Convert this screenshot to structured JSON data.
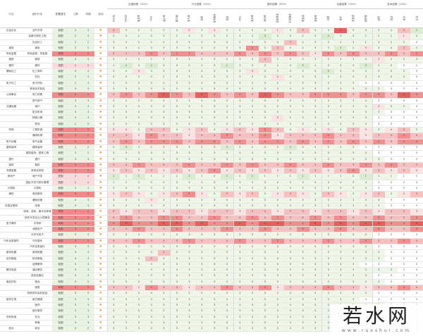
{
  "header": {
    "industry": "行业",
    "sub_industry": "细分行业",
    "rating": "配置建议",
    "col_prev": "上期",
    "col_curr": "本期",
    "col_change": "变动",
    "groups": [
      {
        "label": "估值因素（20%）",
        "cols": [
          "PE分位",
          "PB分位",
          "股息率",
          "PEG",
          "溢价率"
        ]
      },
      {
        "label": "行业因素（20%）",
        "cols": [
          "集中度",
          "景气度",
          "政策",
          "竞争格局",
          "壁垒"
        ]
      },
      {
        "label": "盈利因素（30%）",
        "cols": [
          "ROE",
          "毛利率",
          "净利率",
          "营收增速",
          "利润增速",
          "现金流",
          "周转率"
        ]
      },
      {
        "label": "估值因素（20%）",
        "cols": [
          "动量",
          "换手",
          "资金流",
          "拥挤度"
        ]
      },
      {
        "label": "技术因素（10%）",
        "cols": [
          "趋势",
          "波动",
          "成交",
          "北向"
        ]
      }
    ]
  },
  "palette": {
    "r1": "#fbe3e3",
    "r2": "#f6c0c0",
    "r3": "#ef8f8f",
    "r4": "#e4605f",
    "g1": "#eef6e8",
    "g2": "#dcecd0",
    "g3": "#c7e0b6",
    "tag_red": "#ef8a8a",
    "tag_pink": "#fadada",
    "tag_green": "#e9f3e1"
  },
  "rows": [
    {
      "ind": "石油石化",
      "sub": "油气开采",
      "tag": "标配",
      "tc": "tag_green",
      "a": "3",
      "b": "3",
      "c": "r2g1g1ggg r1g1r1ggg gr1g1r2ggr4 g1ggg r2g2gg",
      "v": "3 3 2 2 3 3 2 3 3 3 2 3 3 1 3 3 3 3 2 3 3 3 4 3 2"
    },
    {
      "ind": "",
      "sub": "油服与炼化工程",
      "tag": "标配",
      "tc": "tag_green",
      "a": "2",
      "b": "3",
      "c": "g1ggg1g gg1ggg g1g1g2gggg1 g2gg1g g1g1r1g",
      "v": "3 3 2 3 3 2 3 3 3 2 3 3 3 3 3 2 3 3 3 3 2 2 1 1 3"
    },
    {
      "ind": "",
      "sub": "石油化工",
      "tag": "标配",
      "tc": "tag_green",
      "a": "2",
      "b": "2",
      "c": "ggg1gg g1gg1gg g1g1ggr2gg g1gg1 g1gg1g",
      "v": "3 3 3 2 2 3 3 3 3 3 2 3 3 4 3 2 3 3 2 3 1 3 2 3 3"
    },
    {
      "ind": "煤炭",
      "sub": "煤炭",
      "tag": "标配",
      "tc": "tag_green",
      "a": "2",
      "b": "2",
      "c": "g1gggg g1ggg1g gr3gr2gg1g g1g2gr1 ggr2g1",
      "v": "3 3 2 3 3 3 3 3 2 3 3 4 3 4 3 2 3 3 3 2 3 3 4 3 2"
    },
    {
      "ind": "有色金属",
      "sub": "有色金属、贵金属",
      "tag": "标配",
      "tc": "tag_red",
      "a": "4",
      "b": "4",
      "c": "r2r2r2r3r2 r3r3r2r2r2 r3r2r3r2r3r2r1 r3r2r3r2 r2r3r2r3",
      "v": "3 3 3 4 3 3 3 4 3 3 4 3 4 3 4 3 3 4 3 4 3 3 4 3 4"
    },
    {
      "ind": "钢铁",
      "sub": "钢铁",
      "tag": "标配",
      "tc": "tag_green",
      "a": "3",
      "b": "3",
      "c": "gg1g1gg gg1ggg g1gr2gg1gg g1gggr1 gg1gg",
      "v": "3 3 3 2 3 3 3 3 3 3 3 3 4 3 3 3 3 3 3 3 4 3 3 3 3"
    },
    {
      "ind": "建材",
      "sub": "建材",
      "tag": "低配",
      "tc": "tag_pink",
      "a": "2",
      "b": "2",
      "c": "g1g2gg2g g1gg1g g2g1gg1gg g2g1gg1 g1g2gg",
      "v": "1 2 3 2 3 3 2 1 3 1 3 3 3 2 3 3 1 3 3 3 3 2 3 3 2"
    },
    {
      "ind": "基础化工",
      "sub": "化工原料",
      "tag": "标配",
      "tc": "tag_green",
      "a": "3",
      "b": "3",
      "c": "ggr1gg gg1ggg gr1gg1gg1 gg2gg ggg1g",
      "v": "3 3 3 3 3 3 3 3 3 3 3 3 3 3 3 3 3 3 3 3 3 3 3 3 3"
    },
    {
      "ind": "",
      "sub": "农化",
      "tag": "标配",
      "tc": "tag_green",
      "a": "3",
      "b": "3",
      "c": "g1gggg1 gg1gg1g gg1gr1gg g1gg1g ggg1g",
      "v": "3 3 3 3 2 3 3 3 3 3 3 3 3 4 3 3 3 3 3 3 3 3 3 3 3"
    },
    {
      "ind": "电子化工",
      "sub": "电子材料",
      "tag": "标配",
      "tc": "tag_green",
      "a": "2",
      "b": "3",
      "c": "g1g1gg gg1gg g1g1g1gg g1g1g1g g1gg1",
      "v": "3 3 3 3 3 3 3 3 3 3 3 3 3 3 3 3 3 3 3 3 3 3 3 3 3"
    },
    {
      "ind": "",
      "sub": "其他化学制品",
      "tag": "标配",
      "tc": "tag_green",
      "a": "3",
      "b": "3",
      "c": "gg1g1gg g1ggg1 gg1g1gg g1gg1g g1gg1g",
      "v": "3 3 3 3 3 3 3 3 3 3 3 3 3 3 3 3 3 3 3 3 3 3 3 3 3"
    },
    {
      "ind": "公用事业",
      "sub": "电力设备",
      "tag": "标配",
      "tc": "tag_red",
      "a": "4",
      "b": "4",
      "c": "r2r3r2r3r4 r3r2r4r3r2 r3r2r4r3r2r2r3 r3r3r2r3 r3r2r4r3",
      "v": "4 4 3 4 4 4 3 4 4 3 4 3 4 4 3 3 4 4 4 3 4 4 3 4 4"
    },
    {
      "ind": "",
      "sub": "燃气燃气",
      "tag": "标配",
      "tc": "tag_green",
      "a": "3",
      "b": "3",
      "c": "gg1gg1 g1gg1g gg1gg1g g1gg1g ggg1g",
      "v": "3 3 3 3 3 3 3 3 3 3 3 3 3 3 3 3 3 3 3 3 3 3 3 3 3"
    },
    {
      "ind": "交通运输",
      "sub": "港口",
      "tag": "标配",
      "tc": "tag_green",
      "a": "3",
      "b": "3",
      "c": "g1gggg1 gg1ggg g1g1gg1g gg1gg ggr1gg",
      "v": "3 3 3 3 3 3 3 3 3 3 3 3 3 3 3 3 3 3 3 3 3 3 3 3 3"
    },
    {
      "ind": "",
      "sub": "航空机场",
      "tag": "标配",
      "tc": "tag_green",
      "a": "3",
      "b": "3",
      "c": "gg1g1gg g1gg1g gg1g1gg1 g1g1gg g1ggg1",
      "v": "3 3 3 3 3 3 3 3 3 3 3 3 3 3 3 3 3 3 3 3 3 3 3 3 3"
    },
    {
      "ind": "",
      "sub": "铁路公路",
      "tag": "标配",
      "tc": "tag_green",
      "a": "3",
      "b": "3",
      "c": "g1ggg1g gg1gg1 g1gg1gr1g gg1g1 g1gg1",
      "v": "3 3 3 3 3 3 3 3 3 3 3 3 3 3 4 3 3 3 3 3 3 3 3 3 3"
    },
    {
      "ind": "",
      "sub": "物流",
      "tag": "标配",
      "tc": "tag_green",
      "a": "2",
      "b": "3",
      "c": "gg1gg1g g1gg1g gg1gg1g g1gg1 gg1gg",
      "v": "3 3 3 3 3 3 3 3 3 3 3 3 3 3 3 3 3 3 3 3 3 3 3 3 3"
    },
    {
      "ind": "机械",
      "sub": "工程机械",
      "tag": "标配",
      "tc": "tag_red",
      "a": "3",
      "b": "4",
      "c": "r1r1gr2r2 gr1r2gr1 r2r1r3r2gr1g r1gr2r1 gr1r2g",
      "v": "3 3 3 4 3 3 3 4 3 3 4 3 4 4 3 3 3 3 4 3 3 3 4 3 3"
    },
    {
      "ind": "",
      "sub": "通用机械",
      "tag": "标配",
      "tc": "tag_red",
      "a": "3",
      "b": "3",
      "c": "r2r2r1r3r2 r2r1r2r2r3 r2r2r3r1r2r2r2 r3r2r2r1 r2r2r3r2",
      "v": "3 3 3 4 3 3 3 4 3 3 4 3 4 3 3 3 3 4 3 3 3 3 4 3 4"
    },
    {
      "ind": "电气设备",
      "sub": "电气设备",
      "tag": "标配",
      "tc": "tag_red",
      "a": "4",
      "b": "4",
      "c": "r2r3r2r3r3 r3r2r3r3r2 r3r2r3r3r2r3r2 r3r2r3r2 r3r2r3r3",
      "v": "4 4 3 4 4 4 3 4 4 3 4 3 4 4 3 4 3 4 3 4 3 4 3 4 4"
    },
    {
      "ind": "建筑装饰",
      "sub": "建筑装饰",
      "tag": "标配",
      "tc": "tag_green",
      "a": "2",
      "b": "2",
      "c": "g1g2gg1 gg1gg1 g1g2gg1g g1g2g1 g1gg1g",
      "v": "2 3 3 2 3 3 3 2 3 3 3 2 3 3 3 3 3 3 2 3 3 3 2 3 3"
    },
    {
      "ind": "",
      "sub": "建筑装饰、园林工程",
      "tag": "标配",
      "tc": "tag_green",
      "a": "2",
      "b": "2",
      "c": "gg1gg1g g1gg1g gg1g1gg g1gg1 gg1gg",
      "v": "3 3 3 3 3 3 3 3 3 3 3 3 3 3 3 3 3 3 3 3 3 3 3 3 3"
    },
    {
      "ind": "银行",
      "sub": "银行",
      "tag": "标配",
      "tc": "tag_green",
      "a": "3",
      "b": "3",
      "c": "g1gggg1 g1g1gg gg1gg1g g1g1gg gg1gg",
      "v": "3 3 3 3 3 3 3 3 3 3 3 3 3 3 3 3 3 3 3 3 3 3 3 3 3"
    },
    {
      "ind": "保险",
      "sub": "保险",
      "tag": "标配",
      "tc": "tag_red",
      "a": "4",
      "b": "3",
      "c": "r2r2r3r2r2 r2r3r2r2r3 r2r3r2r2r3r2r2 r3r2r2r3 r2r3r2r2",
      "v": "3 4 3 3 4 3 4 3 3 4 3 4 3 3 4 3 3 4 3 3 4 3 4 3 3"
    },
    {
      "ind": "非银金融",
      "sub": "券商及其他",
      "tag": "标配",
      "tc": "tag_red",
      "a": "3",
      "b": "3",
      "c": "r1r2r1r2r1 r2r1r2r3r1 r2r1r2r1r2r1r2 r1r2r3r1 r2r1r2r1",
      "v": "3 3 3 3 3 3 3 3 4 3 3 3 3 3 3 3 3 3 3 4 3 3 3 3 3"
    },
    {
      "ind": "房地产",
      "sub": "地产开发",
      "tag": "低配",
      "tc": "tag_pink",
      "a": "2",
      "b": "2",
      "c": "g2g1g2gg1 g1g2gg1 g2g1g2g1gg g2g1gg g1g2gg1",
      "v": "1 1 2 1 1 2 1 1 2 1 2 1 1 1 2 1 1 1 1 2 1 2 1 1 2"
    },
    {
      "ind": "",
      "sub": "园区开发与物业管理",
      "tag": "低配",
      "tc": "tag_pink",
      "a": "2",
      "b": "2",
      "c": "g1gg1gg g1g1gg g1gg1gg g1gg1 gg1gg",
      "v": "2 2 3 3 3 3 3 3 3 3 3 3 3 3 3 3 3 3 3 3 3 3 3 3 3"
    },
    {
      "ind": "计算机",
      "sub": "计算机",
      "tag": "标配",
      "tc": "tag_green",
      "a": "3",
      "b": "3",
      "c": "gg1g1gg g1gg1g gg1gg1g g1g1gg g1gg1",
      "v": "3 3 3 3 3 3 3 3 3 3 3 3 3 3 3 3 3 3 3 3 3 3 3 3 3"
    },
    {
      "ind": "通信",
      "sub": "电信服务",
      "tag": "标配",
      "tc": "tag_red",
      "a": "3",
      "b": "4",
      "c": "r1r2r1gr1 r2r3r1gr2 r1r2gr1r2r1g r2r1gr1 r2gr1r2",
      "v": "3 3 3 3 3 3 4 3 3 3 3 3 3 3 3 3 3 3 3 3 3 3 3 3 3"
    },
    {
      "ind": "",
      "sub": "通信设备",
      "tag": "标配",
      "tc": "tag_green",
      "a": "3",
      "b": "3",
      "c": "g1ggr1gg g1gg1g gg1gg1g g1gg1 gg1gg",
      "v": "3 3 3 3 3 3 3 3 3 3 3 3 3 3 3 3 3 3 3 3 3 3 3 3 3"
    },
    {
      "ind": "传媒互联网",
      "sub": "传媒",
      "tag": "标配",
      "tc": "tag_green",
      "a": "3",
      "b": "3",
      "c": "gg1gg1g g1g1gg g1gg1gg1 g1g1gg gg1gg",
      "v": "3 3 3 3 3 3 3 3 3 3 3 3 3 3 3 3 3 3 3 3 3 3 3 3 3"
    },
    {
      "ind": "",
      "sub": "电商、游戏、娱乐及体育",
      "tag": "标配",
      "tc": "tag_red",
      "a": "3",
      "b": "4",
      "c": "r2r1r2r2r1 r2r2r1r2r2 r1r2r2r1r2r2r1 r2r2r1r2 r1r2r2r1",
      "v": "3 3 3 3 3 3 3 3 3 3 3 3 3 3 3 3 3 3 3 3 3 3 3 3 3"
    },
    {
      "ind": "",
      "sub": "软件开发及云计算服务",
      "tag": "标配",
      "tc": "tag_red",
      "a": "4",
      "b": "4",
      "c": "r2r3r2r2r3 r3r2r2r3r2 r2r3r2r3r2r2r3 r2r3r2r2 r3r2r2r3",
      "v": "4 3 4 3 3 4 3 4 3 3 4 3 4 3 3 4 3 4 3 4 3 3 4 3 4"
    },
    {
      "ind": "电子硬件",
      "sub": "半导体",
      "tag": "标配",
      "tc": "tag_red",
      "a": "4",
      "b": "4",
      "c": "r3r4r3r3r4 r4r3r4r3r3 r4r3r4r4r3r3r4 r3r4r3r4 r4r3r3r4",
      "v": "4 4 4 4 4 4 4 4 4 4 4 4 4 4 4 4 4 4 4 4 4 4 4 4 4"
    },
    {
      "ind": "",
      "sub": "消费电子",
      "tag": "标配",
      "tc": "tag_red",
      "a": "3",
      "b": "4",
      "c": "r2r2r3r2r2 r3r2r2r2r3 r2r2r3r2r2r3r2 r2r3r2r2 r3r2r2r3",
      "v": "3 3 4 3 3 4 3 3 3 4 3 3 4 3 3 4 3 3 4 3 3 4 3 3 4"
    },
    {
      "ind": "",
      "sub": "光学光电子",
      "tag": "标配",
      "tc": "tag_green",
      "a": "3",
      "b": "3",
      "c": "gg1gg1g g1gg1g gg1g1gg1 g1gg1 gg1gg",
      "v": "3 3 3 3 3 3 3 3 3 3 3 3 3 3 3 3 3 3 3 3 3 3 3 3 3"
    },
    {
      "ind": "汽车及零部件",
      "sub": "汽车整车",
      "tag": "标配",
      "tc": "tag_red",
      "a": "3",
      "b": "3",
      "c": "r2r2r3r2r2 r2r3r2r2r2 r3r2r2r3r2r2r2 r3r2r2r3 r2r2r3r2",
      "v": "3 3 3 3 3 3 3 3 3 3 3 3 3 3 3 3 3 3 3 3 3 3 3 3 3"
    },
    {
      "ind": "",
      "sub": "汽车及零部件",
      "tag": "标配",
      "tc": "tag_green",
      "a": "3",
      "b": "3",
      "c": "g1gg1gg g1gg1g gg1gg1g g1g1gg g1gg1",
      "v": "3 3 3 3 3 3 3 3 3 3 3 3 3 3 3 3 3 3 3 3 3 3 3 3 3"
    },
    {
      "ind": "家用电器",
      "sub": "家用电器",
      "tag": "标配",
      "tc": "tag_green",
      "a": "3",
      "b": "3",
      "c": "gg1g1gr2g g1gg1g gg1g1gg g1gg1 gg1gg",
      "v": "3 3 3 3 4 3 3 3 3 3 3 3 3 3 3 3 3 3 3 3 3 3 3 3 3"
    },
    {
      "ind": "纺织服装",
      "sub": "纺织服装",
      "tag": "标配",
      "tc": "tag_green",
      "a": "3",
      "b": "3",
      "c": "g1ggr2gg1 g1gg1g gg1gg1g g1gg1 gg1gg",
      "v": "3 3 3 4 3 3 3 3 3 3 3 3 3 3 3 3 3 3 3 3 3 3 3 3 3"
    },
    {
      "ind": "",
      "sub": "品牌服饰",
      "tag": "标配",
      "tc": "tag_green",
      "a": "3",
      "b": "3",
      "c": "gg1gg1g g1g1gg g1gg1gg g1gg1 g1gg1",
      "v": "3 3 3 3 3 3 3 3 3 3 3 3 3 3 3 3 3 3 3 3 3 3 3 3 3"
    },
    {
      "ind": "餐饮旅游",
      "sub": "酒店餐饮",
      "tag": "标配",
      "tc": "tag_green",
      "a": "3",
      "b": "3",
      "c": "g1gg1gg gg1gg1 g1gg1ggg g1g1gg ggg1g",
      "v": "3 3 3 3 3 3 3 3 3 3 3 3 3 3 3 3 3 3 3 3 3 3 3 3 3"
    },
    {
      "ind": "",
      "sub": "旅游及景区",
      "tag": "标配",
      "tc": "tag_green",
      "a": "3",
      "b": "3",
      "c": "gg1gg1g g1gg1g gg1g1gg g1gg1 gg1gg",
      "v": "3 3 3 3 3 3 3 3 3 3 3 3 3 3 3 3 3 3 3 3 3 3 3 3 3"
    },
    {
      "ind": "食品饮料",
      "sub": "食品",
      "tag": "标配",
      "tc": "tag_green",
      "a": "3",
      "b": "3",
      "c": "g1gggg1 gg1gg1 g1gg1gg1g g1gg1 ggg1g",
      "v": "3 3 3 3 3 3 3 3 3 3 3 3 3 3 3 3 3 3 3 3 3 3 3 3 3"
    },
    {
      "ind": "",
      "sub": "酒类",
      "tag": "标配",
      "tc": "tag_red",
      "a": "4",
      "b": "3",
      "c": "r2r2r1r3r2 r2r1r2r2r3 r2r2r3r1r2r2r2 r3r2r2r1 r2r2r3r2",
      "v": "3 3 3 4 3 3 3 4 3 3 4 3 4 3 3 3 3 4 3 3 3 3 4 3 4"
    },
    {
      "ind": "",
      "sub": "其他饮料及乳制品",
      "tag": "标配",
      "tc": "tag_green",
      "a": "3",
      "b": "3",
      "c": "gg1gg1g g1gg1g gg1gg1g g1gg1 gg1gg",
      "v": "3 3 3 3 3 3 3 3 3 3 3 3 3 3 3 3 3 3 3 3 3 3 3 3 3"
    },
    {
      "ind": "医药生物",
      "sub": "医疗器械",
      "tag": "标配",
      "tc": "tag_green",
      "a": "3",
      "b": "3",
      "c": "g1gg1gg g1g1gg gg1gg1g g1gg1 g1gg1",
      "v": "3 3 3 3 3 3 3 3 3 3 3 3 3 3 3 3 3 3 3 3 3 3 3 3 3"
    },
    {
      "ind": "",
      "sub": "医药",
      "tag": "标配",
      "tc": "tag_green",
      "a": "3",
      "b": "3",
      "c": "gg1g1gg g1gg1g g1gg1gg g1g1gg gg1gg",
      "v": "3 3 3 3 3 3 3 3 3 3 3 3 3 3 3 3 3 3 3 3 3 3 3 3 3"
    },
    {
      "ind": "",
      "sub": "医疗服务",
      "tag": "标配",
      "tc": "tag_green",
      "a": "3",
      "b": "3",
      "c": "g1ggg1g gg1gg1 g1gg1g1g g1gg1 ggg1g",
      "v": "3 3 3 3 3 3 3 3 3 3 3 3 3 3 3 3 3 3 3 3 3 3 3 3 3"
    },
    {
      "ind": "农林牧渔",
      "sub": "农业",
      "tag": "标配",
      "tc": "tag_green",
      "a": "3",
      "b": "3",
      "c": "gg1gg1g g1g1gg g1gg1gg1 g1gg1 g1gg1",
      "v": "3 3 3 3 3 3 3 3 3 3 3 3 3 3 3 3 3 3 3 3 3 3 3 3 3"
    },
    {
      "ind": "",
      "sub": "养殖",
      "tag": "标配",
      "tc": "tag_green",
      "a": "3",
      "b": "3",
      "c": "g1gg1gg g1gg1g gg1g1gg g1gg1 gg1gg",
      "v": "3 3 3 3 3 3 3 3 3 3 3 3 3 3 3 3 3 3 3 3 3 3 3 3 3"
    },
    {
      "ind": "综合",
      "sub": "综合",
      "tag": "标配",
      "tc": "tag_green",
      "a": "2",
      "b": "2",
      "c": "gg1g1gg g1gg1g gg1gg1g g1g1gg gg1gg",
      "v": "3 3 3 3 3 3 3 3 3 3 3 3 3 3 3 3 3 3 3 3 3 3 3 3 3"
    }
  ],
  "watermark": {
    "main": "若水网",
    "sub": "www.ruoshui.com"
  }
}
